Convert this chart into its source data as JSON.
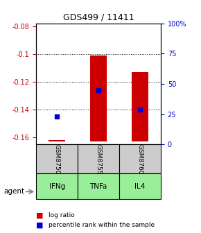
{
  "title": "GDS499 / 11411",
  "samples": [
    "GSM8750",
    "GSM8755",
    "GSM8760"
  ],
  "agents": [
    "IFNg",
    "TNFa",
    "IL4"
  ],
  "ylim_left": [
    -0.165,
    -0.078
  ],
  "ylim_right": [
    0,
    100
  ],
  "yticks_left": [
    -0.16,
    -0.14,
    -0.12,
    -0.1,
    -0.08
  ],
  "yticks_right": [
    0,
    25,
    50,
    75,
    100
  ],
  "ytick_right_labels": [
    "0",
    "25",
    "50",
    "75",
    "100%"
  ],
  "bar_bottoms": [
    -0.163,
    -0.163,
    -0.163
  ],
  "bar_tops": [
    -0.162,
    -0.101,
    -0.113
  ],
  "blue_y": [
    -0.145,
    -0.126,
    -0.14
  ],
  "blue_pct": [
    20,
    45,
    25
  ],
  "bar_color": "#cc0000",
  "blue_color": "#0000cc",
  "agent_colors": [
    "#aaffaa",
    "#aaffaa",
    "#aaffaa"
  ],
  "sample_bg": "#cccccc",
  "grid_color": "#000000",
  "dotted_grid_color": "#555555",
  "left_axis_color": "#cc0000",
  "right_axis_color": "#0000cc",
  "legend_items": [
    "log ratio",
    "percentile rank within the sample"
  ],
  "bar_width": 0.4
}
